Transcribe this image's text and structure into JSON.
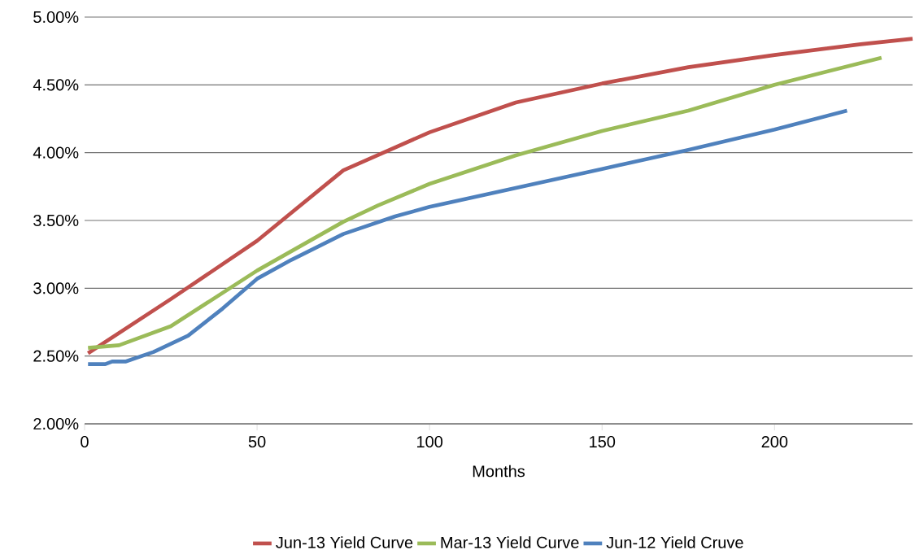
{
  "chart_data": {
    "type": "line",
    "xlabel": "Months",
    "xlim": [
      0,
      240
    ],
    "ylim": [
      2.0,
      5.0
    ],
    "xticks": [
      0,
      50,
      100,
      150,
      200
    ],
    "yticks": [
      {
        "value": 2.0,
        "label": "2.00%"
      },
      {
        "value": 2.5,
        "label": "2.50%"
      },
      {
        "value": 3.0,
        "label": "3.00%"
      },
      {
        "value": 3.5,
        "label": "3.50%"
      },
      {
        "value": 4.0,
        "label": "4.00%"
      },
      {
        "value": 4.5,
        "label": "4.50%"
      },
      {
        "value": 5.0,
        "label": "5.00%"
      }
    ],
    "grid": "y",
    "legend": "bottom",
    "marker": "none",
    "line_style": "solid",
    "series": [
      {
        "name": "Jun-13 Yield Curve",
        "color": "#c0504d",
        "x": [
          1,
          25,
          50,
          75,
          100,
          125,
          150,
          175,
          200,
          225,
          240
        ],
        "values": [
          2.52,
          2.92,
          3.35,
          3.87,
          4.15,
          4.37,
          4.51,
          4.63,
          4.72,
          4.8,
          4.84
        ]
      },
      {
        "name": "Mar-13 Yield Curve",
        "color": "#9bbb59",
        "x": [
          1,
          10,
          25,
          50,
          75,
          85,
          100,
          125,
          150,
          175,
          200,
          231
        ],
        "values": [
          2.56,
          2.58,
          2.72,
          3.13,
          3.49,
          3.61,
          3.77,
          3.98,
          4.16,
          4.31,
          4.5,
          4.7
        ]
      },
      {
        "name": "Jun-12 Yield Cruve",
        "color": "#4f81bd",
        "x": [
          1,
          6,
          8,
          12,
          20,
          30,
          40,
          50,
          60,
          75,
          90,
          100,
          125,
          150,
          175,
          200,
          221
        ],
        "values": [
          2.44,
          2.44,
          2.46,
          2.46,
          2.53,
          2.65,
          2.85,
          3.07,
          3.21,
          3.4,
          3.53,
          3.6,
          3.74,
          3.88,
          4.02,
          4.17,
          4.31
        ]
      }
    ]
  }
}
